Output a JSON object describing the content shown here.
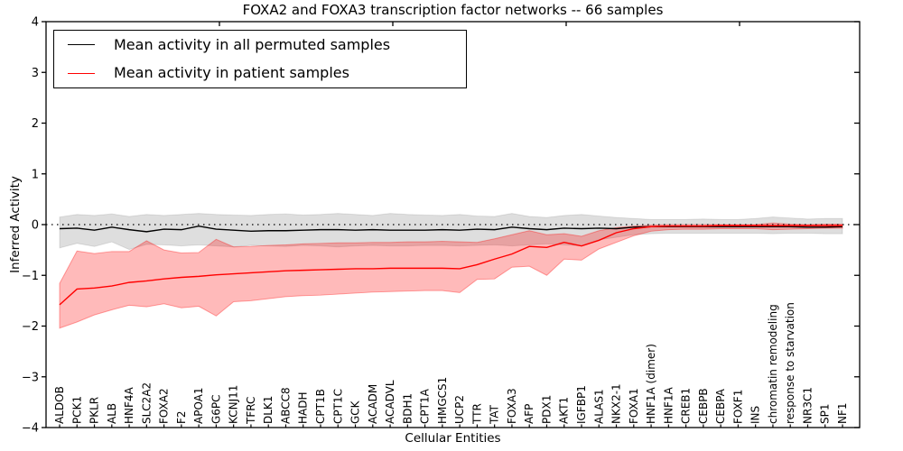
{
  "chart_data": {
    "type": "line",
    "title": "FOXA2 and FOXA3 transcription factor networks -- 66 samples",
    "xlabel": "Cellular Entities",
    "ylabel": "Inferred Activity",
    "ylim": [
      -4,
      4
    ],
    "yticks": [
      4,
      3,
      2,
      1,
      0,
      -1,
      -2,
      -3,
      -4
    ],
    "ytick_labels": [
      "4",
      "3",
      "2",
      "1",
      "0",
      "−1",
      "−2",
      "−3",
      "−4"
    ],
    "grid": false,
    "zero_line_style": "dotted",
    "legend_position": "upper left",
    "x_tick_label_rotation": 90,
    "categories": [
      "ALDOB",
      "PCK1",
      "PKLR",
      "ALB",
      "HNF4A",
      "SLC2A2",
      "FOXA2",
      "F2",
      "APOA1",
      "G6PC",
      "KCNJ11",
      "TFRC",
      "DLK1",
      "ABCC8",
      "HADH",
      "CPT1B",
      "CPT1C",
      "GCK",
      "ACADM",
      "ACADVL",
      "BDH1",
      "CPT1A",
      "HMGCS1",
      "UCP2",
      "TTR",
      "TAT",
      "FOXA3",
      "AFP",
      "PDX1",
      "AKT1",
      "IGFBP1",
      "ALAS1",
      "NKX2-1",
      "FOXA1",
      "HNF1A (dimer)",
      "HNF1A",
      "CREB1",
      "CEBPB",
      "CEBPA",
      "FOXF1",
      "INS",
      "chromatin remodeling",
      "response to starvation",
      "NR3C1",
      "SP1",
      "NF1"
    ],
    "series": [
      {
        "id": "permuted",
        "name": "Mean activity in all permuted samples",
        "color": "#000000",
        "band_color": "rgba(0,0,0,0.13)",
        "band_edge_color": "rgba(0,0,0,0.10)",
        "values": [
          -0.08,
          -0.07,
          -0.11,
          -0.05,
          -0.1,
          -0.14,
          -0.09,
          -0.1,
          -0.03,
          -0.09,
          -0.11,
          -0.13,
          -0.12,
          -0.12,
          -0.11,
          -0.1,
          -0.1,
          -0.11,
          -0.1,
          -0.11,
          -0.11,
          -0.11,
          -0.1,
          -0.11,
          -0.09,
          -0.1,
          -0.05,
          -0.08,
          -0.1,
          -0.07,
          -0.08,
          -0.07,
          -0.08,
          -0.05,
          -0.04,
          -0.04,
          -0.04,
          -0.04,
          -0.04,
          -0.04,
          -0.04,
          -0.04,
          -0.04,
          -0.05,
          -0.05,
          -0.04
        ],
        "band_upper": [
          0.15,
          0.2,
          0.18,
          0.21,
          0.16,
          0.2,
          0.18,
          0.2,
          0.22,
          0.2,
          0.19,
          0.18,
          0.2,
          0.21,
          0.19,
          0.2,
          0.22,
          0.2,
          0.18,
          0.22,
          0.2,
          0.19,
          0.18,
          0.2,
          0.17,
          0.16,
          0.22,
          0.16,
          0.14,
          0.18,
          0.2,
          0.17,
          0.14,
          0.12,
          0.1,
          0.1,
          0.1,
          0.11,
          0.1,
          0.1,
          0.12,
          0.15,
          0.13,
          0.11,
          0.12,
          0.12
        ],
        "band_lower": [
          -0.46,
          -0.37,
          -0.43,
          -0.34,
          -0.49,
          -0.39,
          -0.4,
          -0.42,
          -0.4,
          -0.42,
          -0.44,
          -0.41,
          -0.42,
          -0.43,
          -0.41,
          -0.42,
          -0.44,
          -0.42,
          -0.41,
          -0.42,
          -0.42,
          -0.41,
          -0.41,
          -0.42,
          -0.41,
          -0.4,
          -0.42,
          -0.4,
          -0.38,
          -0.4,
          -0.42,
          -0.3,
          -0.25,
          -0.2,
          -0.18,
          -0.17,
          -0.17,
          -0.17,
          -0.17,
          -0.17,
          -0.17,
          -0.18,
          -0.17,
          -0.17,
          -0.18,
          -0.18
        ]
      },
      {
        "id": "patient",
        "name": "Mean activity in patient samples",
        "color": "#ff0000",
        "band_color": "rgba(255,0,0,0.27)",
        "band_edge_color": "rgba(255,0,0,0.35)",
        "values": [
          -1.58,
          -1.27,
          -1.25,
          -1.21,
          -1.14,
          -1.11,
          -1.07,
          -1.04,
          -1.02,
          -0.99,
          -0.97,
          -0.95,
          -0.93,
          -0.91,
          -0.9,
          -0.89,
          -0.88,
          -0.87,
          -0.87,
          -0.86,
          -0.86,
          -0.86,
          -0.86,
          -0.87,
          -0.79,
          -0.68,
          -0.58,
          -0.43,
          -0.45,
          -0.35,
          -0.42,
          -0.31,
          -0.16,
          -0.08,
          -0.04,
          -0.03,
          -0.03,
          -0.03,
          -0.02,
          -0.02,
          -0.02,
          -0.02,
          -0.02,
          -0.02,
          -0.02,
          -0.02
        ],
        "band_upper": [
          -1.16,
          -0.52,
          -0.57,
          -0.53,
          -0.53,
          -0.32,
          -0.5,
          -0.56,
          -0.55,
          -0.29,
          -0.44,
          -0.43,
          -0.41,
          -0.4,
          -0.38,
          -0.37,
          -0.36,
          -0.36,
          -0.35,
          -0.35,
          -0.34,
          -0.34,
          -0.33,
          -0.34,
          -0.35,
          -0.28,
          -0.2,
          -0.12,
          -0.2,
          -0.18,
          -0.23,
          -0.12,
          -0.06,
          -0.03,
          -0.01,
          0.0,
          0.0,
          0.0,
          0.0,
          0.0,
          0.0,
          0.03,
          0.01,
          0.0,
          0.01,
          0.01
        ],
        "band_lower": [
          -2.04,
          -1.92,
          -1.78,
          -1.68,
          -1.59,
          -1.62,
          -1.56,
          -1.64,
          -1.61,
          -1.8,
          -1.52,
          -1.5,
          -1.46,
          -1.42,
          -1.4,
          -1.39,
          -1.37,
          -1.35,
          -1.33,
          -1.32,
          -1.31,
          -1.3,
          -1.3,
          -1.34,
          -1.08,
          -1.07,
          -0.84,
          -0.82,
          -1.0,
          -0.68,
          -0.7,
          -0.48,
          -0.35,
          -0.22,
          -0.13,
          -0.1,
          -0.09,
          -0.09,
          -0.08,
          -0.08,
          -0.08,
          -0.1,
          -0.09,
          -0.08,
          -0.07,
          -0.07
        ]
      }
    ]
  }
}
